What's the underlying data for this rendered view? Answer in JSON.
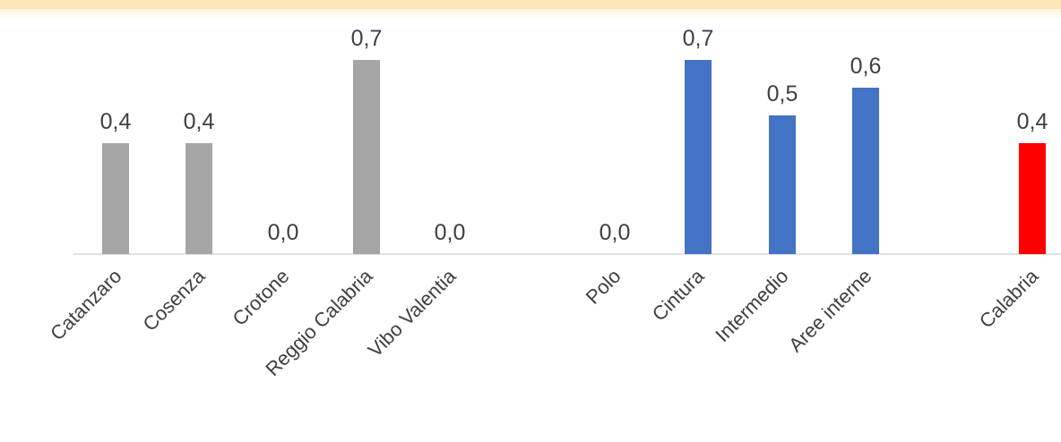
{
  "chart_data": {
    "type": "bar",
    "title": "",
    "xlabel": "",
    "ylabel": "",
    "ylim": [
      0,
      0.8
    ],
    "grid": false,
    "legend": "none",
    "value_labels": true,
    "bars": [
      {
        "category": "Catanzaro",
        "value": 0.4,
        "label": "0,4",
        "color": "#a5a5a5"
      },
      {
        "category": "Cosenza",
        "value": 0.4,
        "label": "0,4",
        "color": "#a5a5a5"
      },
      {
        "category": "Crotone",
        "value": 0.0,
        "label": "0,0",
        "color": "#a5a5a5"
      },
      {
        "category": "Reggio Calabria",
        "value": 0.7,
        "label": "0,7",
        "color": "#a5a5a5"
      },
      {
        "category": "Vibo Valentia",
        "value": 0.0,
        "label": "0,0",
        "color": "#a5a5a5"
      },
      {
        "category": "Polo",
        "value": 0.0,
        "label": "0,0",
        "color": "#4472c4"
      },
      {
        "category": "Cintura",
        "value": 0.7,
        "label": "0,7",
        "color": "#4472c4"
      },
      {
        "category": "Intermedio",
        "value": 0.5,
        "label": "0,5",
        "color": "#4472c4"
      },
      {
        "category": "Aree interne",
        "value": 0.6,
        "label": "0,6",
        "color": "#4472c4"
      },
      {
        "category": "Calabria",
        "value": 0.4,
        "label": "0,4",
        "color": "#ff0000"
      }
    ]
  },
  "colors": {
    "axis": "#d9d9d9",
    "text": "#404040",
    "top_band": "#fde7b7"
  }
}
